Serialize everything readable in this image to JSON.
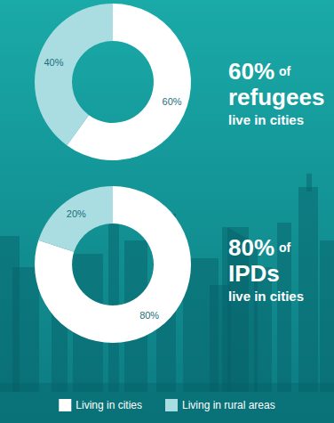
{
  "chart_data": [
    {
      "type": "pie",
      "title": "60% of refugees live in cities",
      "categories": [
        "Living in cities",
        "Living in rural areas"
      ],
      "values": [
        60,
        40
      ],
      "colors": [
        "#ffffff",
        "#a9dde1"
      ],
      "data_labels": true,
      "value_labels": [
        "60%",
        "40%"
      ],
      "legend": "bottom"
    },
    {
      "type": "pie",
      "title": "80% of IPDs live in cities",
      "categories": [
        "Living in cities",
        "Living in rural areas"
      ],
      "values": [
        80,
        20
      ],
      "colors": [
        "#ffffff",
        "#a9dde1"
      ],
      "data_labels": true,
      "value_labels": [
        "80%",
        "20%"
      ],
      "legend": "bottom"
    }
  ]
}
